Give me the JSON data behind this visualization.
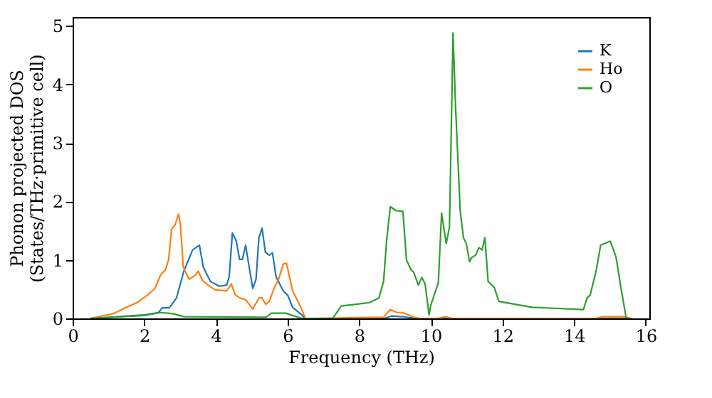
{
  "chart_data": {
    "type": "line",
    "xlabel": "Frequency (THz)",
    "ylabel": "Phonon projected DOS\n(States/THz·primitive cell)",
    "xlim": [
      0,
      16.1
    ],
    "ylim": [
      0,
      5.15
    ],
    "xticks": [
      0,
      2,
      4,
      6,
      8,
      10,
      12,
      14,
      16
    ],
    "yticks": [
      0,
      1,
      2,
      3,
      4,
      5
    ],
    "grid": false,
    "legend": "top right",
    "marker": "none",
    "line_style": "solid",
    "series": [
      {
        "name": "K",
        "color": "#1f77b4",
        "x": [
          0.5,
          2,
          2.4,
          2.5,
          2.7,
          2.9,
          3.1,
          3.35,
          3.54,
          3.65,
          3.85,
          4.1,
          4.3,
          4.37,
          4.46,
          4.57,
          4.66,
          4.74,
          4.83,
          4.93,
          5.03,
          5.12,
          5.2,
          5.29,
          5.38,
          5.49,
          5.58,
          5.68,
          5.88,
          6.01,
          6.14,
          6.4,
          6.47,
          8.7,
          8.9,
          9.2,
          9.6,
          15.6
        ],
        "values": [
          0,
          0.06,
          0.1,
          0.18,
          0.18,
          0.35,
          0.8,
          1.17,
          1.25,
          0.87,
          0.63,
          0.55,
          0.57,
          0.71,
          1.46,
          1.32,
          1.01,
          1.01,
          1.25,
          0.87,
          0.51,
          0.67,
          1.38,
          1.54,
          1.13,
          1.08,
          1.12,
          0.71,
          0.47,
          0.39,
          0.19,
          0.06,
          0,
          0,
          0.04,
          0.03,
          0,
          0
        ]
      },
      {
        "name": "Ho",
        "color": "#ff7f0e",
        "x": [
          0.49,
          1.14,
          1.4,
          1.8,
          2.07,
          2.3,
          2.46,
          2.59,
          2.68,
          2.76,
          2.86,
          2.96,
          3.01,
          3.09,
          3.25,
          3.41,
          3.51,
          3.62,
          3.78,
          3.97,
          4.3,
          4.43,
          4.54,
          4.67,
          4.83,
          5.03,
          5.2,
          5.29,
          5.39,
          5.49,
          5.62,
          5.75,
          5.88,
          5.97,
          6.14,
          6.34,
          6.5,
          8.68,
          8.87,
          9.06,
          9.22,
          9.52,
          9.7,
          10.2,
          10.4,
          10.6,
          14.6,
          14.8,
          15.4,
          15.6
        ],
        "values": [
          0,
          0.08,
          0.16,
          0.27,
          0.39,
          0.51,
          0.75,
          0.83,
          1.0,
          1.52,
          1.6,
          1.78,
          1.6,
          0.87,
          0.67,
          0.73,
          0.81,
          0.65,
          0.57,
          0.49,
          0.47,
          0.59,
          0.4,
          0.35,
          0.32,
          0.16,
          0.35,
          0.35,
          0.24,
          0.29,
          0.51,
          0.67,
          0.93,
          0.94,
          0.47,
          0.23,
          0,
          0.02,
          0.15,
          0.1,
          0.1,
          0.02,
          0,
          0,
          0.03,
          0,
          0,
          0.03,
          0.03,
          0
        ]
      },
      {
        "name": "O",
        "color": "#2ca02c",
        "x": [
          0.5,
          2,
          2.46,
          2.8,
          3.1,
          5.4,
          5.55,
          5.95,
          6.14,
          6.4,
          7.26,
          7.5,
          8.29,
          8.55,
          8.68,
          8.77,
          8.87,
          9.03,
          9.22,
          9.32,
          9.45,
          9.52,
          9.65,
          9.75,
          9.84,
          9.95,
          10.0,
          10.21,
          10.3,
          10.43,
          10.52,
          10.62,
          10.69,
          10.82,
          10.91,
          10.99,
          11.08,
          11.14,
          11.25,
          11.34,
          11.43,
          11.51,
          11.6,
          11.77,
          11.9,
          12.83,
          14.26,
          14.36,
          14.45,
          14.62,
          14.74,
          15.01,
          15.17,
          15.3,
          15.45,
          15.5
        ],
        "values": [
          0,
          0.05,
          0.1,
          0.08,
          0.03,
          0.02,
          0.09,
          0.09,
          0.05,
          0,
          0,
          0.21,
          0.27,
          0.35,
          0.63,
          1.36,
          1.91,
          1.84,
          1.83,
          1.0,
          0.83,
          0.79,
          0.57,
          0.7,
          0.59,
          0.06,
          0.23,
          0.61,
          1.8,
          1.28,
          1.56,
          4.88,
          3.62,
          1.84,
          1.38,
          1.28,
          0.97,
          1.04,
          1.08,
          1.21,
          1.17,
          1.38,
          0.63,
          0.53,
          0.29,
          0.19,
          0.15,
          0.35,
          0.4,
          0.83,
          1.25,
          1.32,
          1.05,
          0.55,
          0.02,
          0
        ]
      }
    ]
  }
}
